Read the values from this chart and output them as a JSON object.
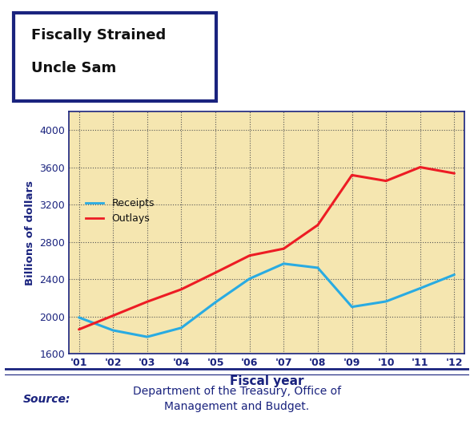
{
  "years": [
    "'01",
    "'02",
    "'03",
    "'04",
    "'05",
    "'06",
    "'07",
    "'08",
    "'09",
    "'10",
    "'11",
    "'12"
  ],
  "receipts": [
    1991,
    1853,
    1783,
    1880,
    2154,
    2407,
    2568,
    2524,
    2105,
    2163,
    2304,
    2450
  ],
  "outlays": [
    1863,
    2011,
    2160,
    2293,
    2472,
    2655,
    2729,
    2983,
    3518,
    3456,
    3603,
    3537
  ],
  "receipts_color": "#29abe2",
  "outlays_color": "#ed1c24",
  "background_color": "#f5e6b0",
  "grid_color": "#555555",
  "ylabel": "Billions of dollars",
  "xlabel": "Fiscal year",
  "ylim_min": 1600,
  "ylim_max": 4200,
  "yticks": [
    1600,
    2000,
    2400,
    2800,
    3200,
    3600,
    4000
  ],
  "legend_receipts": "Receipts",
  "legend_outlays": "Outlays",
  "title_line1": "Fiscally Strained",
  "title_line2": "Uncle Sam",
  "source_bold": "Source:",
  "source_rest": " Department of the Treasury, Office of\nManagement and Budget.",
  "line_width": 2.2,
  "border_color": "#1a237e",
  "text_color": "#1a237e"
}
